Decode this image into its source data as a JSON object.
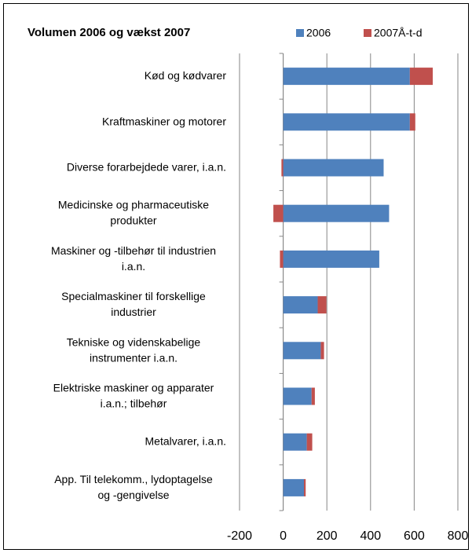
{
  "chart_data": {
    "type": "stacked_barh",
    "title": "Volumen 2006 og vækst 2007",
    "categories": [
      "Kød og kødvarer",
      "Kraftmaskiner og motorer",
      "Diverse forarbejdede varer, i.a.n.",
      "Medicinske og pharmaceutiske\nprodukter",
      "Maskiner og -tilbehør til industrien\ni.a.n.",
      "Specialmaskiner til forskellige\nindustrier",
      "Tekniske og videnskabelige\ninstrumenter i.a.n.",
      "Elektriske maskiner og apparater\ni.a.n.; tilbehør",
      "Metalvarer, i.a.n.",
      "App. Til telekomm., lydoptagelse\nog -gengivelse"
    ],
    "series": [
      {
        "name": "2006",
        "color": "#4f81bd",
        "values": [
          580,
          580,
          460,
          485,
          440,
          158,
          172,
          130,
          108,
          95
        ]
      },
      {
        "name": "2007Å-t-d",
        "color": "#c0504d",
        "values": [
          105,
          25,
          -8,
          -45,
          -15,
          40,
          15,
          15,
          25,
          8
        ]
      }
    ],
    "xlim": [
      -200,
      800
    ],
    "xticks": [
      -200,
      0,
      200,
      400,
      600,
      800
    ],
    "grid": true,
    "legend": "top"
  }
}
